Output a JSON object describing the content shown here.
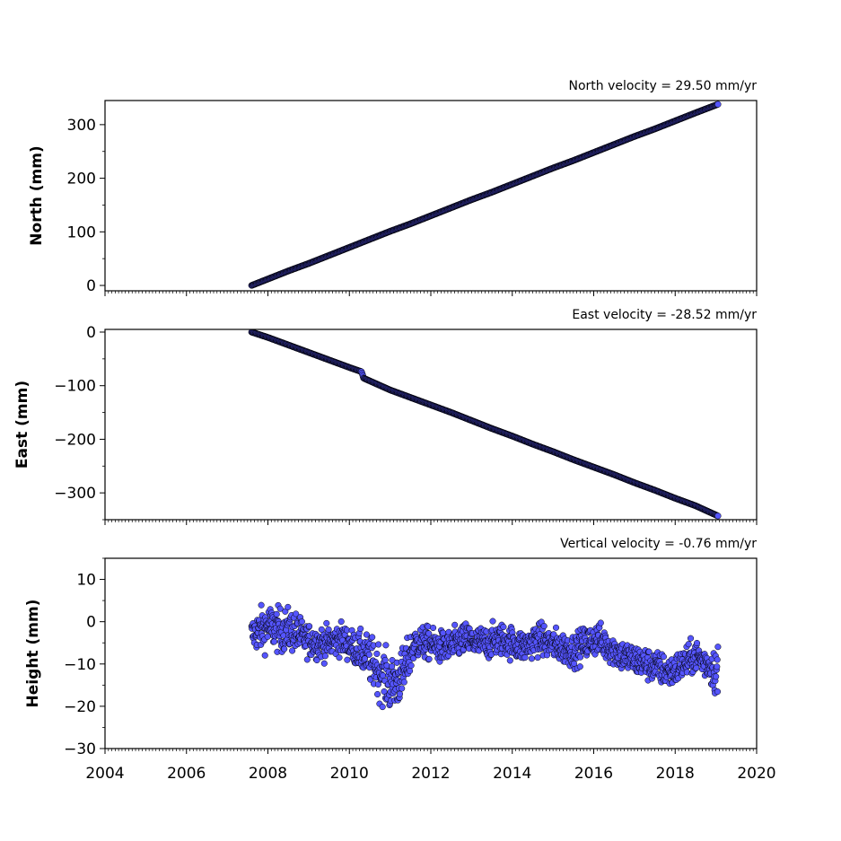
{
  "chart_data": [
    {
      "type": "scatter",
      "title": "North velocity = 29.50 mm/yr",
      "xlabel": "",
      "ylabel": "North (mm)",
      "xlim": [
        2004,
        2020
      ],
      "ylim": [
        -10,
        345
      ],
      "yticks": [
        0,
        100,
        200,
        300
      ],
      "ytick_labels": [
        "0",
        "100",
        "200",
        "300"
      ],
      "show_xtick_labels": false,
      "grid": false,
      "marker_color": "#5555ff",
      "marker_edge": "#000000",
      "x": [
        2007.6,
        2008.0,
        2008.5,
        2009.0,
        2009.5,
        2010.0,
        2010.5,
        2011.0,
        2011.5,
        2012.0,
        2012.5,
        2013.0,
        2013.5,
        2014.0,
        2014.5,
        2015.0,
        2015.5,
        2016.0,
        2016.5,
        2017.0,
        2017.5,
        2018.0,
        2018.5,
        2019.05
      ],
      "y": [
        0,
        12,
        27,
        41,
        56,
        71,
        86,
        101,
        115,
        130,
        145,
        160,
        174,
        189,
        204,
        219,
        233,
        248,
        263,
        278,
        292,
        307,
        322,
        338
      ]
    },
    {
      "type": "scatter",
      "title": "East velocity = -28.52 mm/yr",
      "xlabel": "",
      "ylabel": "East (mm)",
      "xlim": [
        2004,
        2020
      ],
      "ylim": [
        -350,
        5
      ],
      "yticks": [
        0,
        -100,
        -200,
        -300
      ],
      "ytick_labels": [
        "0",
        "−100",
        "−200",
        "−300"
      ],
      "show_xtick_labels": false,
      "grid": false,
      "marker_color": "#5555ff",
      "marker_edge": "#000000",
      "x": [
        2007.6,
        2008.0,
        2008.5,
        2009.0,
        2009.5,
        2010.0,
        2010.3,
        2010.35,
        2011.0,
        2011.5,
        2012.0,
        2012.5,
        2013.0,
        2013.5,
        2014.0,
        2014.5,
        2015.0,
        2015.5,
        2016.0,
        2016.5,
        2017.0,
        2017.5,
        2018.0,
        2018.5,
        2019.05
      ],
      "y": [
        0,
        -10,
        -24,
        -38,
        -52,
        -66,
        -74,
        -86,
        -108,
        -122,
        -136,
        -150,
        -165,
        -180,
        -194,
        -209,
        -223,
        -238,
        -252,
        -266,
        -281,
        -295,
        -310,
        -324,
        -343
      ]
    },
    {
      "type": "scatter",
      "title": "Vertical velocity = -0.76 mm/yr",
      "xlabel": "",
      "ylabel": "Height (mm)",
      "xlim": [
        2004,
        2020
      ],
      "ylim": [
        -30,
        15
      ],
      "yticks": [
        10,
        0,
        -10,
        -20,
        -30
      ],
      "ytick_labels": [
        "10",
        "0",
        "−10",
        "−20",
        "−30"
      ],
      "xticks": [
        2004,
        2006,
        2008,
        2010,
        2012,
        2014,
        2016,
        2018,
        2020
      ],
      "xtick_labels": [
        "2004",
        "2006",
        "2008",
        "2010",
        "2012",
        "2014",
        "2016",
        "2018",
        "2020"
      ],
      "show_xtick_labels": true,
      "grid": false,
      "marker_color": "#5555ff",
      "marker_edge": "#000000",
      "x": [
        2007.6,
        2007.8,
        2008.0,
        2008.3,
        2008.6,
        2008.9,
        2009.2,
        2009.5,
        2009.8,
        2010.1,
        2010.4,
        2010.7,
        2011.0,
        2011.3,
        2011.6,
        2011.9,
        2012.2,
        2012.5,
        2012.8,
        2013.1,
        2013.4,
        2013.7,
        2014.0,
        2014.3,
        2014.6,
        2014.9,
        2015.2,
        2015.5,
        2015.8,
        2016.1,
        2016.4,
        2016.7,
        2017.0,
        2017.3,
        2017.6,
        2017.9,
        2018.2,
        2018.5,
        2018.8,
        2019.05
      ],
      "y": [
        -3,
        -2,
        -1,
        -2,
        -2,
        -4,
        -5,
        -5,
        -4,
        -6,
        -8,
        -11,
        -15,
        -13,
        -5,
        -5,
        -6,
        -6,
        -4,
        -5,
        -5,
        -4,
        -5,
        -6,
        -4,
        -5,
        -6,
        -7,
        -5,
        -4,
        -6,
        -8,
        -9,
        -10,
        -11,
        -12,
        -10,
        -8,
        -10,
        -12
      ],
      "spread": [
        3,
        4,
        4,
        4,
        4,
        3,
        3,
        3,
        3,
        3,
        4,
        5,
        5,
        5,
        3,
        3,
        3,
        3,
        3,
        3,
        3,
        3,
        3,
        3,
        3,
        3,
        3,
        3,
        3,
        3,
        3,
        3,
        3,
        3,
        3,
        3,
        3,
        3,
        3,
        5
      ]
    }
  ]
}
